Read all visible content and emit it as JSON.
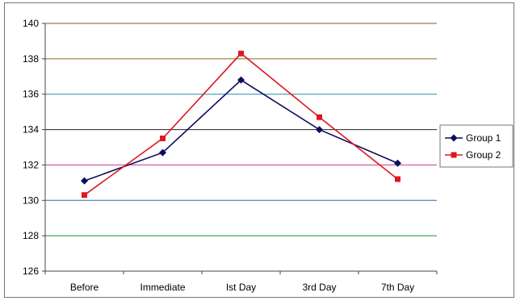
{
  "chart_data": {
    "type": "line",
    "categories": [
      "Before",
      "Immediate",
      "Ist Day",
      "3rd Day",
      "7th Day"
    ],
    "series": [
      {
        "name": "Group 1",
        "values": [
          131.1,
          132.7,
          136.8,
          134.0,
          132.1
        ],
        "color": "#0d0d5e",
        "marker": "diamond"
      },
      {
        "name": "Group 2",
        "values": [
          130.3,
          133.5,
          138.3,
          134.7,
          131.2
        ],
        "color": "#e01520",
        "marker": "square"
      }
    ],
    "yticks": [
      "126",
      "128",
      "130",
      "132",
      "134",
      "136",
      "138",
      "140"
    ],
    "ylim": [
      126,
      140
    ],
    "grid": true,
    "gridline_colors": [
      "#6e2a12",
      "#1a8a3a",
      "#2a6ab4",
      "#c43a8e",
      "#222222",
      "#2a8aa8",
      "#8a6a14",
      "#8a5a2a"
    ],
    "legend_position": "right"
  }
}
